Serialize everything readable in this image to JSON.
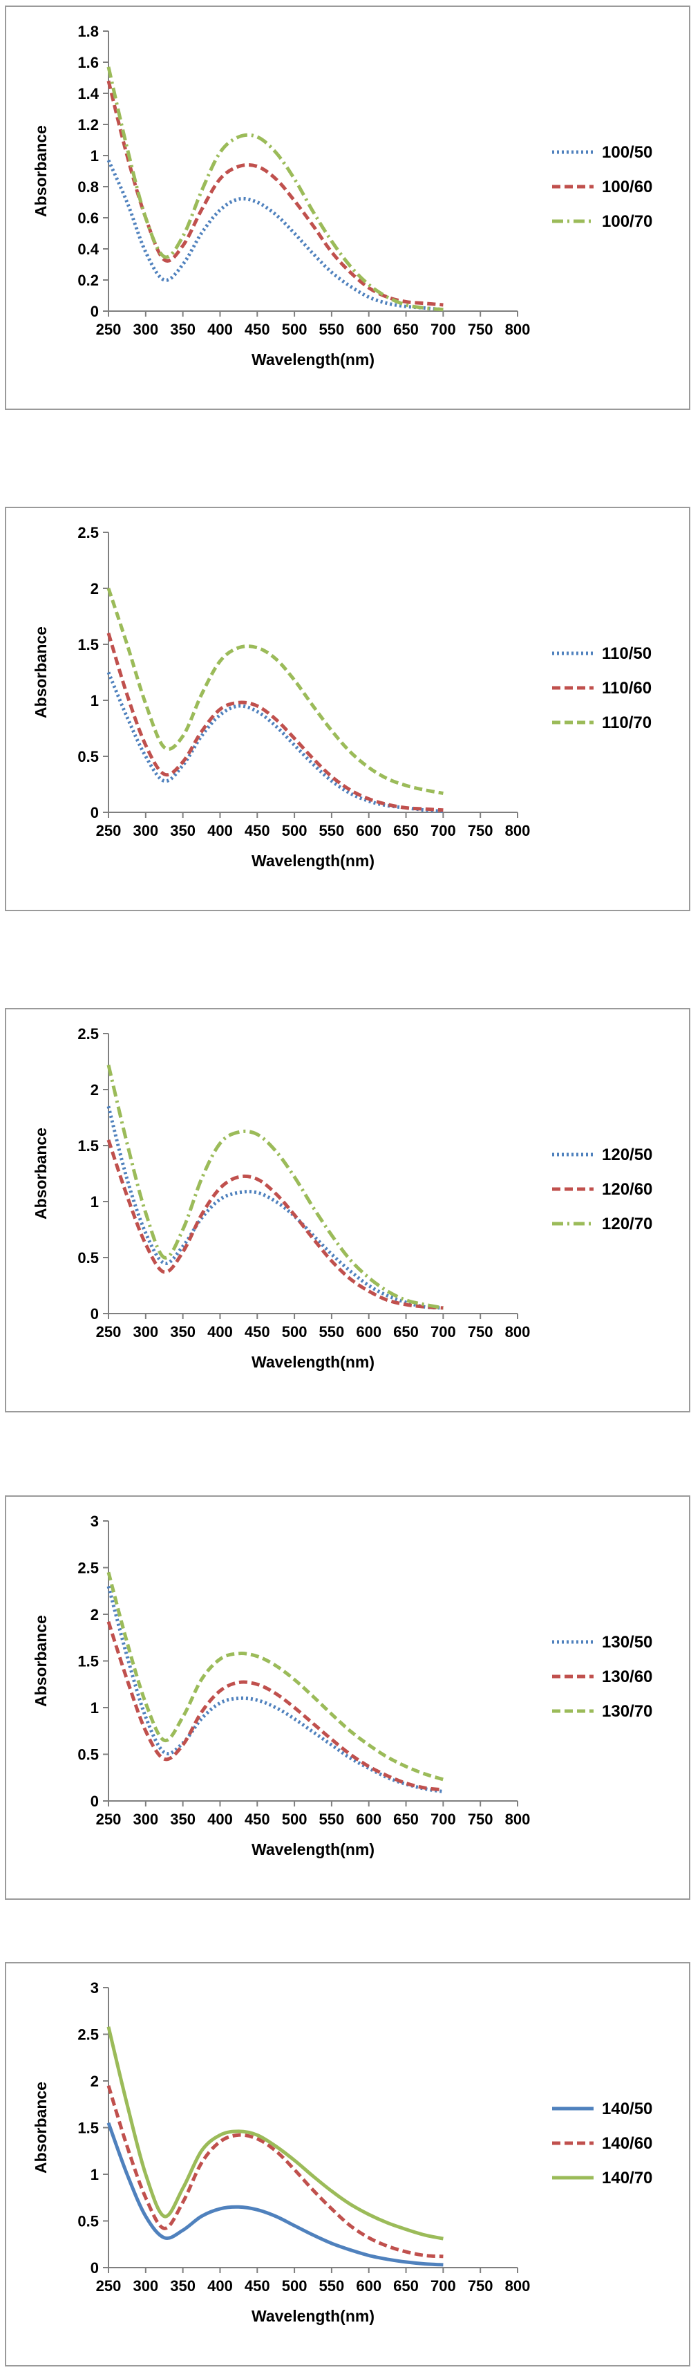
{
  "chart_data": [
    {
      "type": "line",
      "xlabel": "Wavelength(nm)",
      "ylabel": "Absorbance",
      "xlim": [
        250,
        800
      ],
      "ylim": [
        0,
        1.8
      ],
      "xticks": [
        "250",
        "300",
        "350",
        "400",
        "450",
        "500",
        "550",
        "600",
        "650",
        "700",
        "750",
        "800"
      ],
      "yticks": [
        "0",
        "0.2",
        "0.4",
        "0.6",
        "0.8",
        "1",
        "1.2",
        "1.4",
        "1.6",
        "1.8"
      ],
      "legend": "right",
      "grid": false,
      "x": [
        250,
        275,
        300,
        325,
        350,
        375,
        400,
        425,
        450,
        475,
        500,
        525,
        550,
        575,
        600,
        625,
        650,
        675,
        700
      ],
      "series": [
        {
          "name": "100/50",
          "color": "#4F81BD",
          "style": "dotted",
          "values": [
            0.97,
            0.7,
            0.38,
            0.2,
            0.3,
            0.5,
            0.65,
            0.72,
            0.7,
            0.62,
            0.5,
            0.37,
            0.25,
            0.16,
            0.09,
            0.05,
            0.03,
            0.02,
            0.01
          ]
        },
        {
          "name": "100/60",
          "color": "#C0504D",
          "style": "dashed",
          "values": [
            1.48,
            1.0,
            0.6,
            0.33,
            0.42,
            0.65,
            0.85,
            0.93,
            0.93,
            0.85,
            0.71,
            0.55,
            0.38,
            0.25,
            0.15,
            0.09,
            0.06,
            0.05,
            0.04
          ]
        },
        {
          "name": "100/70",
          "color": "#9BBB59",
          "style": "dashdot",
          "values": [
            1.57,
            1.05,
            0.6,
            0.35,
            0.48,
            0.77,
            1.02,
            1.12,
            1.12,
            1.02,
            0.85,
            0.64,
            0.45,
            0.29,
            0.17,
            0.09,
            0.04,
            0.02,
            0.01
          ]
        }
      ]
    },
    {
      "type": "line",
      "xlabel": "Wavelength(nm)",
      "ylabel": "Absorbance",
      "xlim": [
        250,
        800
      ],
      "ylim": [
        0,
        2.5
      ],
      "xticks": [
        "250",
        "300",
        "350",
        "400",
        "450",
        "500",
        "550",
        "600",
        "650",
        "700",
        "750",
        "800"
      ],
      "yticks": [
        "0",
        "0.5",
        "1",
        "1.5",
        "2",
        "2.5"
      ],
      "legend": "right",
      "grid": false,
      "x": [
        250,
        275,
        300,
        325,
        350,
        375,
        400,
        425,
        450,
        475,
        500,
        525,
        550,
        575,
        600,
        625,
        650,
        675,
        700
      ],
      "series": [
        {
          "name": "110/50",
          "color": "#4F81BD",
          "style": "dotted",
          "values": [
            1.25,
            0.85,
            0.5,
            0.28,
            0.42,
            0.68,
            0.87,
            0.95,
            0.9,
            0.77,
            0.6,
            0.43,
            0.28,
            0.17,
            0.1,
            0.06,
            0.04,
            0.02,
            0.01
          ]
        },
        {
          "name": "110/60",
          "color": "#C0504D",
          "style": "dashed",
          "values": [
            1.6,
            1.05,
            0.6,
            0.34,
            0.45,
            0.72,
            0.92,
            0.98,
            0.95,
            0.83,
            0.66,
            0.48,
            0.32,
            0.2,
            0.12,
            0.07,
            0.04,
            0.03,
            0.02
          ]
        },
        {
          "name": "110/70",
          "color": "#9BBB59",
          "style": "dashed",
          "values": [
            2.0,
            1.5,
            0.97,
            0.58,
            0.68,
            1.05,
            1.35,
            1.47,
            1.47,
            1.37,
            1.18,
            0.95,
            0.73,
            0.54,
            0.4,
            0.3,
            0.24,
            0.2,
            0.17
          ]
        }
      ]
    },
    {
      "type": "line",
      "xlabel": "Wavelength(nm)",
      "ylabel": "Absorbance",
      "xlim": [
        250,
        800
      ],
      "ylim": [
        0,
        2.5
      ],
      "xticks": [
        "250",
        "300",
        "350",
        "400",
        "450",
        "500",
        "550",
        "600",
        "650",
        "700",
        "750",
        "800"
      ],
      "yticks": [
        "0",
        "0.5",
        "1",
        "1.5",
        "2",
        "2.5"
      ],
      "legend": "right",
      "grid": false,
      "x": [
        250,
        275,
        300,
        325,
        350,
        375,
        400,
        425,
        450,
        475,
        500,
        525,
        550,
        575,
        600,
        625,
        650,
        675,
        700
      ],
      "series": [
        {
          "name": "120/50",
          "color": "#4F81BD",
          "style": "dotted",
          "values": [
            1.85,
            1.2,
            0.72,
            0.45,
            0.6,
            0.85,
            1.02,
            1.08,
            1.08,
            1.0,
            0.87,
            0.7,
            0.53,
            0.38,
            0.25,
            0.16,
            0.1,
            0.06,
            0.05
          ]
        },
        {
          "name": "120/60",
          "color": "#C0504D",
          "style": "dashed",
          "values": [
            1.55,
            1.05,
            0.62,
            0.37,
            0.55,
            0.88,
            1.12,
            1.22,
            1.2,
            1.07,
            0.88,
            0.67,
            0.47,
            0.31,
            0.2,
            0.12,
            0.08,
            0.06,
            0.05
          ]
        },
        {
          "name": "120/70",
          "color": "#9BBB59",
          "style": "dashdot",
          "values": [
            2.22,
            1.52,
            0.9,
            0.5,
            0.75,
            1.2,
            1.52,
            1.62,
            1.6,
            1.45,
            1.22,
            0.95,
            0.7,
            0.48,
            0.32,
            0.2,
            0.12,
            0.08,
            0.05
          ]
        }
      ]
    },
    {
      "type": "line",
      "xlabel": "Wavelength(nm)",
      "ylabel": "Absorbance",
      "xlim": [
        250,
        800
      ],
      "ylim": [
        0,
        3
      ],
      "xticks": [
        "250",
        "300",
        "350",
        "400",
        "450",
        "500",
        "550",
        "600",
        "650",
        "700",
        "750",
        "800"
      ],
      "yticks": [
        "0",
        "0.5",
        "1",
        "1.5",
        "2",
        "2.5",
        "3"
      ],
      "legend": "right",
      "grid": false,
      "x": [
        250,
        275,
        300,
        325,
        350,
        375,
        400,
        425,
        450,
        475,
        500,
        525,
        550,
        575,
        600,
        625,
        650,
        675,
        700
      ],
      "series": [
        {
          "name": "130/50",
          "color": "#4F81BD",
          "style": "dotted",
          "values": [
            2.3,
            1.55,
            0.9,
            0.52,
            0.62,
            0.88,
            1.05,
            1.1,
            1.08,
            1.0,
            0.88,
            0.74,
            0.6,
            0.46,
            0.35,
            0.25,
            0.18,
            0.13,
            0.1
          ]
        },
        {
          "name": "130/60",
          "color": "#C0504D",
          "style": "dashed",
          "values": [
            1.92,
            1.3,
            0.75,
            0.45,
            0.6,
            0.95,
            1.18,
            1.27,
            1.25,
            1.15,
            1.0,
            0.83,
            0.66,
            0.5,
            0.37,
            0.27,
            0.19,
            0.14,
            0.12
          ]
        },
        {
          "name": "130/70",
          "color": "#9BBB59",
          "style": "dashed",
          "values": [
            2.45,
            1.7,
            1.05,
            0.65,
            0.9,
            1.3,
            1.52,
            1.58,
            1.55,
            1.45,
            1.3,
            1.12,
            0.93,
            0.75,
            0.6,
            0.47,
            0.37,
            0.29,
            0.23
          ]
        }
      ]
    },
    {
      "type": "line",
      "xlabel": "Wavelength(nm)",
      "ylabel": "Absorbance",
      "xlim": [
        250,
        800
      ],
      "ylim": [
        0,
        3
      ],
      "xticks": [
        "250",
        "300",
        "350",
        "400",
        "450",
        "500",
        "550",
        "600",
        "650",
        "700",
        "750",
        "800"
      ],
      "yticks": [
        "0",
        "0.5",
        "1",
        "1.5",
        "2",
        "2.5",
        "3"
      ],
      "legend": "right",
      "grid": false,
      "x": [
        250,
        275,
        300,
        325,
        350,
        375,
        400,
        425,
        450,
        475,
        500,
        525,
        550,
        575,
        600,
        625,
        650,
        675,
        700
      ],
      "series": [
        {
          "name": "140/50",
          "color": "#4F81BD",
          "style": "solid",
          "values": [
            1.55,
            1.0,
            0.55,
            0.32,
            0.4,
            0.55,
            0.63,
            0.65,
            0.62,
            0.55,
            0.45,
            0.35,
            0.26,
            0.19,
            0.13,
            0.09,
            0.06,
            0.04,
            0.03
          ]
        },
        {
          "name": "140/60",
          "color": "#C0504D",
          "style": "dashed",
          "values": [
            1.95,
            1.3,
            0.75,
            0.42,
            0.7,
            1.12,
            1.35,
            1.42,
            1.38,
            1.25,
            1.05,
            0.83,
            0.63,
            0.45,
            0.32,
            0.23,
            0.17,
            0.13,
            0.12
          ]
        },
        {
          "name": "140/70",
          "color": "#9BBB59",
          "style": "solid",
          "values": [
            2.58,
            1.75,
            1.0,
            0.55,
            0.85,
            1.25,
            1.42,
            1.46,
            1.42,
            1.3,
            1.15,
            0.98,
            0.82,
            0.68,
            0.57,
            0.48,
            0.41,
            0.35,
            0.31
          ]
        }
      ]
    }
  ]
}
